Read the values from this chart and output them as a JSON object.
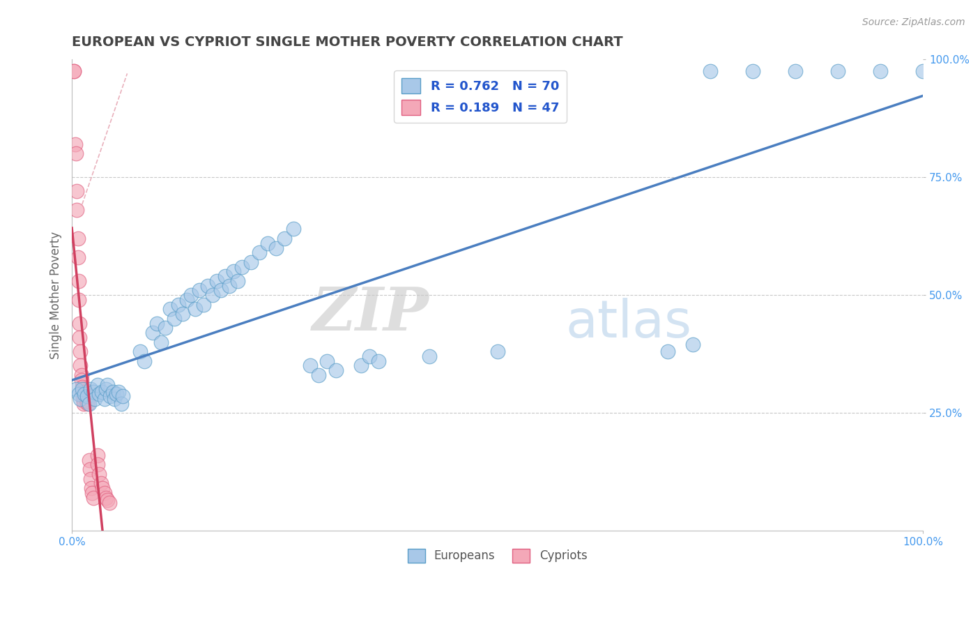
{
  "title": "EUROPEAN VS CYPRIOT SINGLE MOTHER POVERTY CORRELATION CHART",
  "source": "Source: ZipAtlas.com",
  "ylabel": "Single Mother Poverty",
  "xlim": [
    0,
    1
  ],
  "ylim": [
    0,
    1
  ],
  "blue_R": 0.762,
  "blue_N": 70,
  "pink_R": 0.189,
  "pink_N": 47,
  "blue_color": "#A8C8E8",
  "pink_color": "#F4A8B8",
  "blue_edge_color": "#5A9EC8",
  "pink_edge_color": "#E06080",
  "blue_line_color": "#4A7EC0",
  "pink_line_color": "#D04060",
  "pink_dash_color": "#E090A0",
  "watermark_zip": "ZIP",
  "watermark_atlas": "atlas",
  "blue_scatter": [
    [
      0.005,
      0.3
    ],
    [
      0.008,
      0.29
    ],
    [
      0.01,
      0.28
    ],
    [
      0.012,
      0.3
    ],
    [
      0.015,
      0.29
    ],
    [
      0.018,
      0.285
    ],
    [
      0.02,
      0.27
    ],
    [
      0.022,
      0.3
    ],
    [
      0.025,
      0.295
    ],
    [
      0.027,
      0.28
    ],
    [
      0.03,
      0.31
    ],
    [
      0.032,
      0.29
    ],
    [
      0.035,
      0.295
    ],
    [
      0.038,
      0.28
    ],
    [
      0.04,
      0.3
    ],
    [
      0.042,
      0.31
    ],
    [
      0.045,
      0.285
    ],
    [
      0.048,
      0.295
    ],
    [
      0.05,
      0.28
    ],
    [
      0.052,
      0.29
    ],
    [
      0.055,
      0.295
    ],
    [
      0.058,
      0.27
    ],
    [
      0.06,
      0.285
    ],
    [
      0.08,
      0.38
    ],
    [
      0.085,
      0.36
    ],
    [
      0.095,
      0.42
    ],
    [
      0.1,
      0.44
    ],
    [
      0.105,
      0.4
    ],
    [
      0.11,
      0.43
    ],
    [
      0.115,
      0.47
    ],
    [
      0.12,
      0.45
    ],
    [
      0.125,
      0.48
    ],
    [
      0.13,
      0.46
    ],
    [
      0.135,
      0.49
    ],
    [
      0.14,
      0.5
    ],
    [
      0.145,
      0.47
    ],
    [
      0.15,
      0.51
    ],
    [
      0.155,
      0.48
    ],
    [
      0.16,
      0.52
    ],
    [
      0.165,
      0.5
    ],
    [
      0.17,
      0.53
    ],
    [
      0.175,
      0.51
    ],
    [
      0.18,
      0.54
    ],
    [
      0.185,
      0.52
    ],
    [
      0.19,
      0.55
    ],
    [
      0.195,
      0.53
    ],
    [
      0.2,
      0.56
    ],
    [
      0.21,
      0.57
    ],
    [
      0.22,
      0.59
    ],
    [
      0.23,
      0.61
    ],
    [
      0.24,
      0.6
    ],
    [
      0.25,
      0.62
    ],
    [
      0.26,
      0.64
    ],
    [
      0.28,
      0.35
    ],
    [
      0.29,
      0.33
    ],
    [
      0.3,
      0.36
    ],
    [
      0.31,
      0.34
    ],
    [
      0.34,
      0.35
    ],
    [
      0.35,
      0.37
    ],
    [
      0.36,
      0.36
    ],
    [
      0.42,
      0.37
    ],
    [
      0.5,
      0.38
    ],
    [
      0.7,
      0.38
    ],
    [
      0.73,
      0.395
    ],
    [
      0.75,
      0.975
    ],
    [
      0.8,
      0.975
    ],
    [
      0.85,
      0.975
    ],
    [
      0.9,
      0.975
    ],
    [
      0.95,
      0.975
    ],
    [
      1.0,
      0.975
    ]
  ],
  "pink_scatter": [
    [
      0.002,
      0.975
    ],
    [
      0.002,
      0.975
    ],
    [
      0.004,
      0.82
    ],
    [
      0.005,
      0.8
    ],
    [
      0.006,
      0.72
    ],
    [
      0.006,
      0.68
    ],
    [
      0.007,
      0.62
    ],
    [
      0.007,
      0.58
    ],
    [
      0.008,
      0.53
    ],
    [
      0.008,
      0.49
    ],
    [
      0.009,
      0.44
    ],
    [
      0.009,
      0.41
    ],
    [
      0.01,
      0.38
    ],
    [
      0.01,
      0.35
    ],
    [
      0.011,
      0.33
    ],
    [
      0.011,
      0.32
    ],
    [
      0.012,
      0.305
    ],
    [
      0.012,
      0.295
    ],
    [
      0.013,
      0.285
    ],
    [
      0.013,
      0.28
    ],
    [
      0.014,
      0.275
    ],
    [
      0.014,
      0.27
    ],
    [
      0.015,
      0.3
    ],
    [
      0.015,
      0.295
    ],
    [
      0.016,
      0.29
    ],
    [
      0.016,
      0.285
    ],
    [
      0.017,
      0.28
    ],
    [
      0.017,
      0.275
    ],
    [
      0.018,
      0.285
    ],
    [
      0.018,
      0.28
    ],
    [
      0.019,
      0.275
    ],
    [
      0.019,
      0.27
    ],
    [
      0.02,
      0.15
    ],
    [
      0.021,
      0.13
    ],
    [
      0.022,
      0.11
    ],
    [
      0.023,
      0.09
    ],
    [
      0.024,
      0.08
    ],
    [
      0.025,
      0.07
    ],
    [
      0.03,
      0.16
    ],
    [
      0.03,
      0.14
    ],
    [
      0.032,
      0.12
    ],
    [
      0.034,
      0.1
    ],
    [
      0.036,
      0.09
    ],
    [
      0.038,
      0.08
    ],
    [
      0.04,
      0.07
    ],
    [
      0.042,
      0.065
    ],
    [
      0.044,
      0.06
    ]
  ]
}
